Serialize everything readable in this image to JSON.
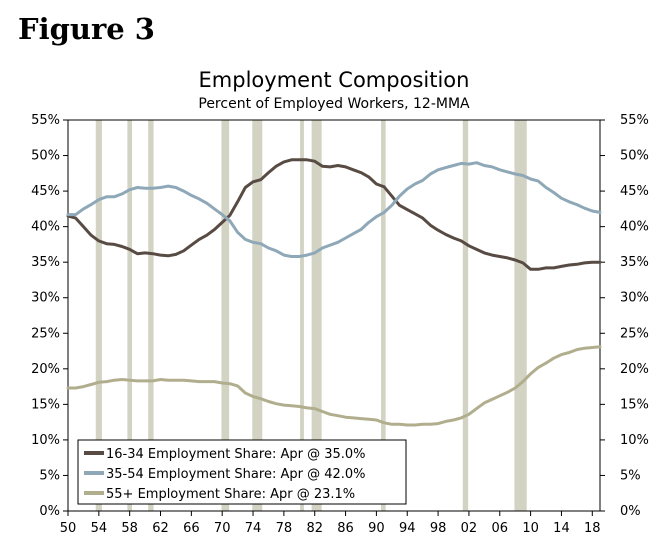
{
  "figure_label": "Figure 3",
  "chart_data": {
    "type": "line",
    "title": "Employment Composition",
    "subtitle": "Percent of Employed Workers, 12-MMA",
    "xlabel": "",
    "ylabel": "",
    "xlim": [
      1950,
      2019
    ],
    "ylim": [
      0,
      55
    ],
    "x_ticks": [
      1950,
      1954,
      1958,
      1962,
      1966,
      1970,
      1974,
      1978,
      1982,
      1986,
      1990,
      1994,
      1998,
      2002,
      2006,
      2010,
      2014,
      2018
    ],
    "x_tick_labels": [
      "50",
      "54",
      "58",
      "62",
      "66",
      "70",
      "74",
      "78",
      "82",
      "86",
      "90",
      "94",
      "98",
      "02",
      "06",
      "10",
      "14",
      "18"
    ],
    "y_ticks": [
      0,
      5,
      10,
      15,
      20,
      25,
      30,
      35,
      40,
      45,
      50,
      55
    ],
    "y_tick_labels": [
      "0%",
      "5%",
      "10%",
      "15%",
      "20%",
      "25%",
      "30%",
      "35%",
      "40%",
      "45%",
      "50%",
      "55%"
    ],
    "grid": false,
    "legend_position": "bottom-left",
    "recession_bands": [
      [
        1953.6,
        1954.4
      ],
      [
        1957.7,
        1958.3
      ],
      [
        1960.4,
        1961.1
      ],
      [
        1969.9,
        1970.9
      ],
      [
        1973.9,
        1975.2
      ],
      [
        1980.1,
        1980.6
      ],
      [
        1981.6,
        1982.9
      ],
      [
        1990.6,
        1991.2
      ],
      [
        2001.2,
        2001.9
      ],
      [
        2007.9,
        2009.5
      ]
    ],
    "colors": {
      "recession": "#d3d3c4",
      "s1": "#584b43",
      "s2": "#8ea8b8",
      "s3": "#b1ae8e"
    },
    "series": [
      {
        "name": "16-34 Employment Share: Apr @ 35.0%",
        "color": "#584b43",
        "x": [
          1950,
          1951,
          1952,
          1953,
          1954,
          1955,
          1956,
          1957,
          1958,
          1959,
          1960,
          1961,
          1962,
          1963,
          1964,
          1965,
          1966,
          1967,
          1968,
          1969,
          1970,
          1971,
          1972,
          1973,
          1974,
          1975,
          1976,
          1977,
          1978,
          1979,
          1980,
          1981,
          1982,
          1983,
          1984,
          1985,
          1986,
          1987,
          1988,
          1989,
          1990,
          1991,
          1992,
          1993,
          1994,
          1995,
          1996,
          1997,
          1998,
          1999,
          2000,
          2001,
          2002,
          2003,
          2004,
          2005,
          2006,
          2007,
          2008,
          2009,
          2010,
          2011,
          2012,
          2013,
          2014,
          2015,
          2016,
          2017,
          2018,
          2019
        ],
        "y": [
          41.5,
          41.2,
          40.0,
          38.8,
          38.0,
          37.6,
          37.5,
          37.2,
          36.8,
          36.2,
          36.3,
          36.2,
          36.0,
          35.9,
          36.1,
          36.6,
          37.4,
          38.2,
          38.8,
          39.6,
          40.6,
          41.6,
          43.5,
          45.5,
          46.3,
          46.6,
          47.6,
          48.5,
          49.1,
          49.4,
          49.4,
          49.4,
          49.2,
          48.5,
          48.4,
          48.6,
          48.4,
          48.0,
          47.6,
          47.0,
          46.0,
          45.6,
          44.3,
          43.0,
          42.4,
          41.8,
          41.2,
          40.2,
          39.5,
          38.9,
          38.4,
          38.0,
          37.3,
          36.8,
          36.3,
          36.0,
          35.8,
          35.6,
          35.3,
          34.9,
          34.0,
          34.0,
          34.2,
          34.2,
          34.4,
          34.6,
          34.7,
          34.9,
          35.0,
          35.0
        ]
      },
      {
        "name": "35-54 Employment Share: Apr @ 42.0%",
        "color": "#8ea8b8",
        "x": [
          1950,
          1951,
          1952,
          1953,
          1954,
          1955,
          1956,
          1957,
          1958,
          1959,
          1960,
          1961,
          1962,
          1963,
          1964,
          1965,
          1966,
          1967,
          1968,
          1969,
          1970,
          1971,
          1972,
          1973,
          1974,
          1975,
          1976,
          1977,
          1978,
          1979,
          1980,
          1981,
          1982,
          1983,
          1984,
          1985,
          1986,
          1987,
          1988,
          1989,
          1990,
          1991,
          1992,
          1993,
          1994,
          1995,
          1996,
          1997,
          1998,
          1999,
          2000,
          2001,
          2002,
          2003,
          2004,
          2005,
          2006,
          2007,
          2008,
          2009,
          2010,
          2011,
          2012,
          2013,
          2014,
          2015,
          2016,
          2017,
          2018,
          2019
        ],
        "y": [
          41.7,
          41.7,
          42.5,
          43.1,
          43.8,
          44.2,
          44.2,
          44.6,
          45.2,
          45.5,
          45.4,
          45.4,
          45.5,
          45.7,
          45.5,
          45.0,
          44.4,
          43.9,
          43.3,
          42.5,
          41.7,
          40.8,
          39.2,
          38.2,
          37.8,
          37.6,
          37.0,
          36.6,
          36.0,
          35.8,
          35.8,
          36.0,
          36.3,
          37.0,
          37.4,
          37.8,
          38.4,
          39.0,
          39.6,
          40.6,
          41.4,
          42.0,
          43.0,
          44.3,
          45.3,
          46.0,
          46.5,
          47.4,
          48.0,
          48.3,
          48.6,
          48.9,
          48.8,
          49.0,
          48.6,
          48.4,
          48.0,
          47.7,
          47.4,
          47.2,
          46.7,
          46.4,
          45.5,
          44.8,
          44.0,
          43.5,
          43.1,
          42.6,
          42.2,
          42.0
        ]
      },
      {
        "name": "55+ Employment Share: Apr @ 23.1%",
        "color": "#b1ae8e",
        "x": [
          1950,
          1951,
          1952,
          1953,
          1954,
          1955,
          1956,
          1957,
          1958,
          1959,
          1960,
          1961,
          1962,
          1963,
          1964,
          1965,
          1966,
          1967,
          1968,
          1969,
          1970,
          1971,
          1972,
          1973,
          1974,
          1975,
          1976,
          1977,
          1978,
          1979,
          1980,
          1981,
          1982,
          1983,
          1984,
          1985,
          1986,
          1987,
          1988,
          1989,
          1990,
          1991,
          1992,
          1993,
          1994,
          1995,
          1996,
          1997,
          1998,
          1999,
          2000,
          2001,
          2002,
          2003,
          2004,
          2005,
          2006,
          2007,
          2008,
          2009,
          2010,
          2011,
          2012,
          2013,
          2014,
          2015,
          2016,
          2017,
          2018,
          2019
        ],
        "y": [
          17.3,
          17.3,
          17.5,
          17.8,
          18.1,
          18.2,
          18.4,
          18.5,
          18.4,
          18.3,
          18.3,
          18.3,
          18.5,
          18.4,
          18.4,
          18.4,
          18.3,
          18.2,
          18.2,
          18.2,
          18.0,
          17.9,
          17.6,
          16.6,
          16.1,
          15.8,
          15.4,
          15.1,
          14.9,
          14.8,
          14.7,
          14.5,
          14.4,
          14.0,
          13.6,
          13.4,
          13.2,
          13.1,
          13.0,
          12.9,
          12.8,
          12.4,
          12.2,
          12.2,
          12.1,
          12.1,
          12.2,
          12.2,
          12.3,
          12.6,
          12.8,
          13.1,
          13.6,
          14.4,
          15.2,
          15.7,
          16.2,
          16.7,
          17.3,
          18.2,
          19.3,
          20.2,
          20.8,
          21.5,
          22.0,
          22.3,
          22.7,
          22.9,
          23.0,
          23.1
        ]
      }
    ]
  }
}
